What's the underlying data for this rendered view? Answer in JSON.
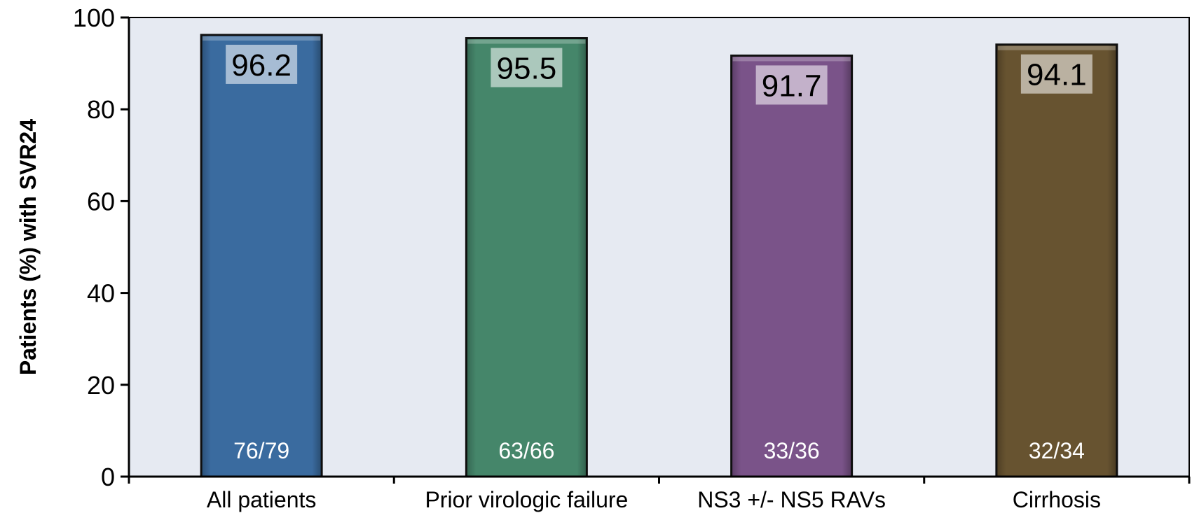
{
  "chart_data": {
    "type": "bar",
    "ylabel": "Patients (%) with SVR24",
    "ylim": [
      0,
      100
    ],
    "yticks": [
      0,
      20,
      40,
      60,
      80,
      100
    ],
    "grid": false,
    "categories": [
      "All patients",
      "Prior virologic failure",
      "NS3 +/- NS5 RAVs",
      "Cirrhosis"
    ],
    "values": [
      96.2,
      95.5,
      91.7,
      94.1
    ],
    "value_labels": [
      "96.2",
      "95.5",
      "91.7",
      "94.1"
    ],
    "counts": [
      "76/79",
      "63/66",
      "33/36",
      "32/34"
    ],
    "colors": [
      "#3a6b9f",
      "#45866a",
      "#7a5389",
      "#675330"
    ],
    "plot_background": "#e6eaf2"
  }
}
